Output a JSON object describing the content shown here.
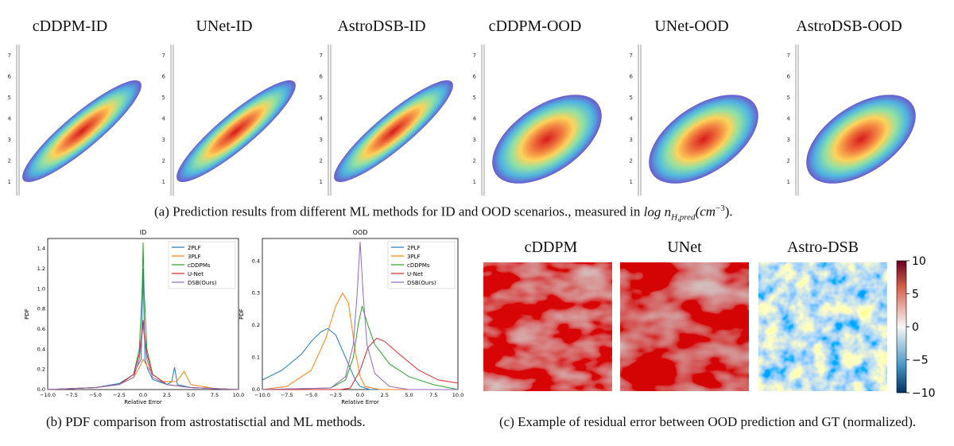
{
  "panel_a": {
    "titles": [
      "cDDPM-ID",
      "UNet-ID",
      "AstroDSB-ID",
      "cDDPM-OOD",
      "UNet-OOD",
      "AstroDSB-OOD"
    ],
    "y_ticks": [
      "1",
      "2",
      "3",
      "4",
      "5",
      "6",
      "7"
    ],
    "caption_prefix": "(a) Prediction results from different ML methods for ID and OOD scenarios., measured in ",
    "caption_math": "log n",
    "caption_sub": "H,pred",
    "caption_unit": "(cm",
    "caption_exp": "−3",
    "caption_end": ")."
  },
  "panel_b": {
    "caption": "(b) PDF comparison from astrostatisctial and ML methods.",
    "xlabel": "Relative Error",
    "ylabel": "PDF"
  },
  "panel_c": {
    "titles": [
      "cDDPM",
      "UNet",
      "Astro-DSB"
    ],
    "colorbar_ticks": [
      "10",
      "5",
      "0",
      "−5",
      "−10"
    ],
    "caption": "(c) Example of residual error between OOD prediction and GT (normalized)."
  },
  "colors": {
    "2PLF": "#1f77b4",
    "3PLF": "#ff7f0e",
    "cDDPMs": "#2ca02c",
    "U-Net": "#d62728",
    "DSB(Ours)": "#9467bd",
    "residual_pos": "#b2182b",
    "residual_neg": "#2166ac"
  },
  "chart_data": [
    {
      "type": "line",
      "title": "ID",
      "xlabel": "Relative Error",
      "ylabel": "PDF",
      "xlim": [
        -10,
        10
      ],
      "ylim": [
        0,
        1.5
      ],
      "x_ticks": [
        "−10.0",
        "−7.5",
        "−5.0",
        "−2.5",
        "0.0",
        "2.5",
        "5.0",
        "7.5",
        "10.0"
      ],
      "y_ticks": [
        "0.0",
        "0.2",
        "0.4",
        "0.6",
        "0.8",
        "1.0",
        "1.2",
        "1.4"
      ],
      "legend_position": "top-right",
      "series": [
        {
          "name": "2PLF",
          "x": [
            -10,
            -5,
            -2.5,
            -1,
            -0.5,
            -0.2,
            0,
            0.2,
            0.5,
            1,
            2.5,
            3,
            3.3,
            3.6,
            5,
            10
          ],
          "y": [
            0,
            0.02,
            0.06,
            0.15,
            0.25,
            0.3,
            1.2,
            0.3,
            0.2,
            0.1,
            0.05,
            0.08,
            0.22,
            0.05,
            0.02,
            0
          ]
        },
        {
          "name": "3PLF",
          "x": [
            -10,
            -5,
            -2.5,
            -1,
            -0.5,
            0,
            0.5,
            1,
            2,
            3.5,
            4.3,
            5,
            7.5,
            10
          ],
          "y": [
            0,
            0.02,
            0.05,
            0.12,
            0.2,
            0.3,
            0.22,
            0.15,
            0.08,
            0.08,
            0.18,
            0.05,
            0.01,
            0
          ]
        },
        {
          "name": "cDDPMs",
          "x": [
            -10,
            -5,
            -2.5,
            -1,
            -0.4,
            -0.1,
            0,
            0.1,
            0.4,
            1,
            2.5,
            5,
            10
          ],
          "y": [
            0,
            0.02,
            0.05,
            0.15,
            0.4,
            1.0,
            1.46,
            1.0,
            0.4,
            0.15,
            0.05,
            0.02,
            0
          ]
        },
        {
          "name": "U-Net",
          "x": [
            -10,
            -5,
            -2.5,
            -1,
            -0.4,
            -0.1,
            0,
            0.1,
            0.4,
            1,
            2.5,
            5,
            10
          ],
          "y": [
            0,
            0.02,
            0.05,
            0.15,
            0.35,
            0.6,
            0.69,
            0.6,
            0.35,
            0.15,
            0.05,
            0.02,
            0
          ]
        },
        {
          "name": "DSB(Ours)",
          "x": [
            -10,
            -5,
            -2.5,
            -1,
            -0.4,
            -0.1,
            0,
            0.1,
            0.4,
            1,
            2.5,
            5,
            10
          ],
          "y": [
            0,
            0.02,
            0.05,
            0.12,
            0.3,
            0.55,
            0.65,
            0.55,
            0.3,
            0.12,
            0.05,
            0.02,
            0
          ]
        }
      ]
    },
    {
      "type": "line",
      "title": "OOD",
      "xlabel": "Relative Error",
      "ylabel": "PDF",
      "xlim": [
        -10,
        10
      ],
      "ylim": [
        0,
        0.47
      ],
      "x_ticks": [
        "−10.0",
        "−7.5",
        "−5.0",
        "−2.5",
        "0.0",
        "2.5",
        "5.0",
        "7.5",
        "10.0"
      ],
      "y_ticks": [
        "0.0",
        "0.1",
        "0.2",
        "0.3",
        "0.4"
      ],
      "legend_position": "top-right",
      "series": [
        {
          "name": "2PLF",
          "x": [
            -10,
            -8,
            -6,
            -5,
            -4,
            -3.3,
            -2.5,
            -1.5,
            -0.5,
            0,
            1,
            2,
            10
          ],
          "y": [
            0.03,
            0.06,
            0.11,
            0.15,
            0.18,
            0.19,
            0.17,
            0.1,
            0.03,
            0.01,
            0,
            0,
            0
          ]
        },
        {
          "name": "3PLF",
          "x": [
            -10,
            -7.5,
            -5,
            -3.5,
            -2.5,
            -1.8,
            -1.2,
            -0.5,
            0,
            0.5,
            2,
            10
          ],
          "y": [
            0,
            0.01,
            0.06,
            0.16,
            0.26,
            0.3,
            0.27,
            0.12,
            0.04,
            0.01,
            0,
            0
          ]
        },
        {
          "name": "cDDPMs",
          "x": [
            -10,
            -3,
            -1.5,
            -0.7,
            -0.2,
            0.2,
            0.8,
            1.5,
            3,
            5,
            7.5,
            10
          ],
          "y": [
            0,
            0.005,
            0.03,
            0.1,
            0.2,
            0.26,
            0.2,
            0.14,
            0.08,
            0.04,
            0.015,
            0
          ]
        },
        {
          "name": "U-Net",
          "x": [
            -10,
            -2,
            -1,
            0,
            0.8,
            1.7,
            2.5,
            4,
            6,
            8,
            10
          ],
          "y": [
            0,
            0,
            0.005,
            0.06,
            0.13,
            0.16,
            0.15,
            0.11,
            0.06,
            0.03,
            0.02
          ]
        },
        {
          "name": "DSB(Ours)",
          "x": [
            -10,
            -3,
            -1.5,
            -0.7,
            -0.3,
            0,
            0.3,
            0.7,
            1.5,
            3,
            5,
            10
          ],
          "y": [
            0,
            0.005,
            0.04,
            0.14,
            0.3,
            0.46,
            0.3,
            0.14,
            0.05,
            0.01,
            0,
            0
          ]
        }
      ]
    }
  ]
}
